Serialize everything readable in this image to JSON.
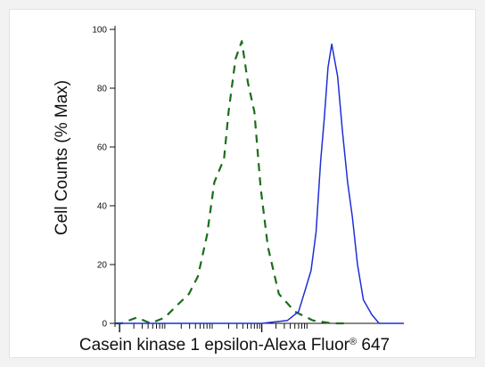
{
  "chart_data": {
    "type": "line",
    "title": "",
    "ylabel": "Cell Counts (% Max)",
    "xlabel_main": "Casein kinase 1 epsilon-Alexa Fluor",
    "xlabel_sup": "®",
    "xlabel_end": " 647",
    "xscale": "log",
    "xlim": [
      0.8,
      1000000
    ],
    "ylim": [
      0,
      100
    ],
    "yticks": [
      0,
      20,
      40,
      60,
      80,
      100
    ],
    "ytick_labels": [
      "0",
      "20",
      "40",
      "60",
      "80",
      "100"
    ],
    "x_major_ticks": [
      1,
      1000
    ],
    "x_minor_ticks": [
      2,
      3,
      4,
      5,
      6,
      7,
      8,
      9,
      20,
      30,
      40,
      50,
      60,
      70,
      80,
      90,
      200,
      300,
      400,
      500,
      600,
      700,
      800,
      900,
      2000,
      3000,
      4000,
      5000,
      6000,
      7000,
      8000,
      9000
    ],
    "grid": false,
    "legend": "none",
    "series": [
      {
        "color": "#1a6e1a",
        "style": "dashed",
        "x": [
          0.8,
          1.1,
          2.3,
          4.5,
          9,
          16,
          29,
          45,
          70,
          100,
          160,
          200,
          280,
          380,
          510,
          700,
          950,
          1350,
          2300,
          5000,
          12000,
          30000,
          60000
        ],
        "y": [
          0,
          0,
          2,
          0,
          2,
          6,
          10,
          16,
          30,
          48,
          56,
          72,
          90,
          96,
          82,
          72,
          46,
          26,
          10,
          4,
          1,
          0,
          0
        ]
      },
      {
        "color": "#1f2fd6",
        "style": "solid",
        "x": [
          0.8,
          1000,
          3500,
          6000,
          8500,
          11000,
          14000,
          17500,
          21000,
          25000,
          30000,
          40000,
          50000,
          65000,
          82000,
          105000,
          140000,
          210000,
          300000,
          420000,
          650000,
          1000000
        ],
        "y": [
          0,
          0,
          1,
          4,
          12,
          18,
          31,
          55,
          70,
          87,
          95,
          84,
          66,
          48,
          36,
          20,
          8,
          3,
          0,
          0,
          0,
          0
        ]
      }
    ]
  }
}
